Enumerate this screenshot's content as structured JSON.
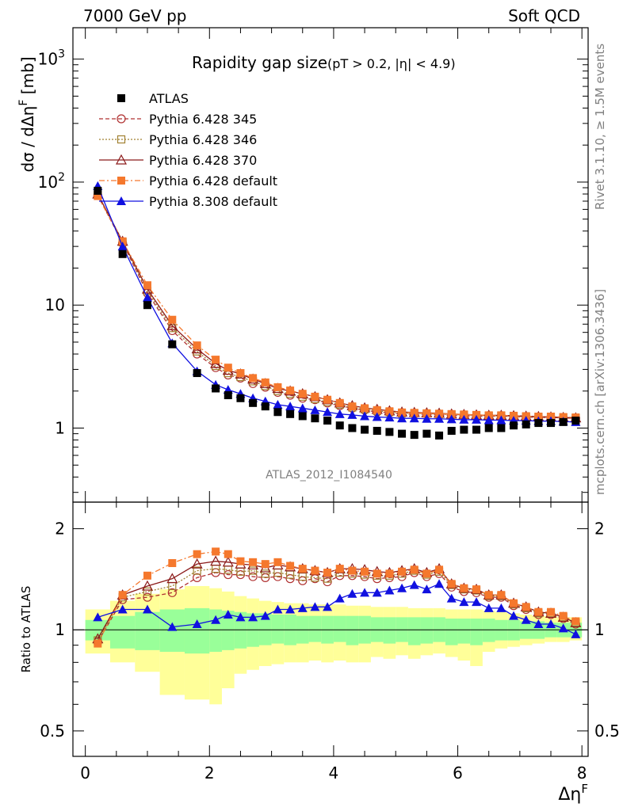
{
  "header": {
    "left": "7000 GeV pp",
    "right": "Soft QCD"
  },
  "side": {
    "rivet": "Rivet 3.1.10, ≥ 1.5M events",
    "mcplots": "mcplots.cern.ch [arXiv:1306.3436]"
  },
  "chart_data": {
    "type": "scatter",
    "title": "Rapidity gap size",
    "title_sub": "(pT > 0.2, |η| < 4.9)",
    "analysis_label": "ATLAS_2012_I1084540",
    "xlabel": "Δη",
    "xlabel_sup": "F",
    "xlim": [
      -0.2,
      8.1
    ],
    "xticks": [
      0,
      2,
      4,
      6,
      8
    ],
    "main": {
      "ylabel": "dσ / dΔη",
      "ylabel_sup": "F",
      "ylabel_unit": "[mb]",
      "yscale": "log",
      "ylim": [
        0.25,
        1800
      ],
      "yticks": [
        {
          "v": 1,
          "label": "1"
        },
        {
          "v": 10,
          "label": "10"
        },
        {
          "v": 100,
          "label": "10",
          "sup": "2"
        },
        {
          "v": 1000,
          "label": "10",
          "sup": "3"
        }
      ],
      "x": [
        0.2,
        0.6,
        1.0,
        1.4,
        1.8,
        2.1,
        2.3,
        2.5,
        2.7,
        2.9,
        3.1,
        3.3,
        3.5,
        3.7,
        3.9,
        4.1,
        4.3,
        4.5,
        4.7,
        4.9,
        5.1,
        5.3,
        5.5,
        5.7,
        5.9,
        6.1,
        6.3,
        6.5,
        6.7,
        6.9,
        7.1,
        7.3,
        7.5,
        7.7,
        7.9
      ],
      "series": [
        {
          "name": "ATLAS",
          "marker": "square-filled",
          "color": "#000000",
          "line": "none",
          "values": [
            85,
            26,
            10,
            4.8,
            2.8,
            2.1,
            1.85,
            1.75,
            1.6,
            1.5,
            1.35,
            1.3,
            1.25,
            1.2,
            1.15,
            1.05,
            1.0,
            0.97,
            0.95,
            0.93,
            0.9,
            0.88,
            0.9,
            0.87,
            0.95,
            0.97,
            0.97,
            1.0,
            1.0,
            1.05,
            1.07,
            1.1,
            1.1,
            1.12,
            1.15
          ]
        },
        {
          "name": "Pythia 6.428 345",
          "marker": "circle-open",
          "color": "#b03030",
          "line": "dashed",
          "values": [
            78,
            32,
            12.5,
            6.2,
            4.0,
            3.1,
            2.7,
            2.55,
            2.3,
            2.15,
            1.95,
            1.85,
            1.75,
            1.7,
            1.6,
            1.52,
            1.45,
            1.4,
            1.35,
            1.33,
            1.3,
            1.3,
            1.3,
            1.28,
            1.27,
            1.26,
            1.25,
            1.25,
            1.25,
            1.24,
            1.23,
            1.22,
            1.22,
            1.21,
            1.2
          ]
        },
        {
          "name": "Pythia 6.428 346",
          "marker": "square-open",
          "color": "#a08030",
          "line": "dotted",
          "values": [
            79,
            32.5,
            13,
            6.5,
            4.2,
            3.2,
            2.8,
            2.6,
            2.4,
            2.2,
            2.0,
            1.9,
            1.8,
            1.72,
            1.63,
            1.55,
            1.47,
            1.42,
            1.38,
            1.35,
            1.32,
            1.32,
            1.31,
            1.3,
            1.29,
            1.28,
            1.27,
            1.26,
            1.26,
            1.25,
            1.24,
            1.23,
            1.23,
            1.22,
            1.21
          ]
        },
        {
          "name": "Pythia 6.428 370",
          "marker": "triangle-open",
          "color": "#8b1a1a",
          "line": "solid",
          "values": [
            80,
            33,
            13.5,
            6.8,
            4.4,
            3.35,
            2.95,
            2.75,
            2.5,
            2.3,
            2.1,
            2.0,
            1.9,
            1.8,
            1.7,
            1.6,
            1.52,
            1.46,
            1.42,
            1.38,
            1.35,
            1.34,
            1.33,
            1.32,
            1.3,
            1.29,
            1.28,
            1.27,
            1.27,
            1.26,
            1.25,
            1.24,
            1.23,
            1.22,
            1.21
          ]
        },
        {
          "name": "Pythia 6.428 default",
          "marker": "square-filled",
          "color": "#f5782d",
          "line": "dashdot",
          "values": [
            77,
            33,
            14.5,
            7.6,
            4.7,
            3.6,
            3.1,
            2.8,
            2.55,
            2.35,
            2.15,
            2.02,
            1.9,
            1.8,
            1.7,
            1.6,
            1.5,
            1.45,
            1.4,
            1.37,
            1.34,
            1.33,
            1.32,
            1.31,
            1.3,
            1.29,
            1.28,
            1.27,
            1.27,
            1.26,
            1.25,
            1.24,
            1.24,
            1.23,
            1.22
          ]
        },
        {
          "name": "Pythia 8.308 default",
          "marker": "triangle-filled",
          "color": "#1010e0",
          "line": "solid",
          "values": [
            93,
            30,
            11.5,
            4.9,
            2.9,
            2.25,
            2.05,
            1.9,
            1.75,
            1.65,
            1.55,
            1.5,
            1.45,
            1.4,
            1.35,
            1.3,
            1.28,
            1.25,
            1.23,
            1.22,
            1.2,
            1.2,
            1.19,
            1.19,
            1.18,
            1.17,
            1.17,
            1.16,
            1.16,
            1.15,
            1.15,
            1.14,
            1.14,
            1.13,
            1.12
          ]
        }
      ]
    },
    "ratio": {
      "ylabel": "Ratio to ATLAS",
      "yscale": "log",
      "ylim": [
        0.42,
        2.4
      ],
      "yticks": [
        {
          "v": 0.5,
          "label": "0.5"
        },
        {
          "v": 1,
          "label": "1"
        },
        {
          "v": 2,
          "label": "2"
        }
      ],
      "band_inner": {
        "color": "#99ff99",
        "x": [
          [
            0,
            0.4
          ],
          [
            0.4,
            0.8
          ],
          [
            0.8,
            1.2
          ],
          [
            1.2,
            1.6
          ],
          [
            1.6,
            2.0
          ],
          [
            2.0,
            2.2
          ],
          [
            2.2,
            2.4
          ],
          [
            2.4,
            2.6
          ],
          [
            2.6,
            2.8
          ],
          [
            2.8,
            3.0
          ],
          [
            3.0,
            3.2
          ],
          [
            3.2,
            3.4
          ],
          [
            3.4,
            3.6
          ],
          [
            3.6,
            3.8
          ],
          [
            3.8,
            4.0
          ],
          [
            4.0,
            4.2
          ],
          [
            4.2,
            4.4
          ],
          [
            4.4,
            4.6
          ],
          [
            4.6,
            4.8
          ],
          [
            4.8,
            5.0
          ],
          [
            5.0,
            5.2
          ],
          [
            5.2,
            5.4
          ],
          [
            5.4,
            5.6
          ],
          [
            5.6,
            5.8
          ],
          [
            5.8,
            6.0
          ],
          [
            6.0,
            6.2
          ],
          [
            6.2,
            6.4
          ],
          [
            6.4,
            6.6
          ],
          [
            6.6,
            6.8
          ],
          [
            6.8,
            7.0
          ],
          [
            7.0,
            7.2
          ],
          [
            7.2,
            7.4
          ],
          [
            7.4,
            7.6
          ],
          [
            7.6,
            7.8
          ],
          [
            7.8,
            8.0
          ]
        ],
        "low": [
          0.93,
          0.88,
          0.87,
          0.86,
          0.85,
          0.86,
          0.87,
          0.88,
          0.89,
          0.9,
          0.91,
          0.9,
          0.91,
          0.92,
          0.91,
          0.92,
          0.9,
          0.91,
          0.92,
          0.91,
          0.92,
          0.9,
          0.91,
          0.92,
          0.9,
          0.91,
          0.9,
          0.92,
          0.93,
          0.93,
          0.94,
          0.94,
          0.95,
          0.95,
          0.95
        ],
        "high": [
          1.07,
          1.1,
          1.13,
          1.15,
          1.16,
          1.15,
          1.14,
          1.13,
          1.12,
          1.12,
          1.11,
          1.11,
          1.1,
          1.1,
          1.1,
          1.1,
          1.1,
          1.1,
          1.09,
          1.09,
          1.09,
          1.09,
          1.09,
          1.09,
          1.08,
          1.08,
          1.08,
          1.08,
          1.07,
          1.07,
          1.06,
          1.06,
          1.05,
          1.05,
          1.05
        ]
      },
      "band_outer": {
        "color": "#ffff99",
        "low": [
          0.85,
          0.8,
          0.75,
          0.64,
          0.62,
          0.6,
          0.67,
          0.74,
          0.76,
          0.78,
          0.79,
          0.8,
          0.8,
          0.81,
          0.8,
          0.81,
          0.8,
          0.8,
          0.83,
          0.82,
          0.84,
          0.82,
          0.84,
          0.85,
          0.83,
          0.81,
          0.78,
          0.86,
          0.88,
          0.89,
          0.9,
          0.91,
          0.92,
          0.92,
          0.93
        ],
        "high": [
          1.15,
          1.22,
          1.28,
          1.32,
          1.35,
          1.33,
          1.3,
          1.26,
          1.24,
          1.22,
          1.21,
          1.2,
          1.2,
          1.19,
          1.19,
          1.19,
          1.18,
          1.18,
          1.17,
          1.17,
          1.17,
          1.16,
          1.16,
          1.16,
          1.15,
          1.15,
          1.15,
          1.14,
          1.13,
          1.12,
          1.11,
          1.1,
          1.1,
          1.09,
          1.09
        ]
      },
      "series": [
        {
          "name": "Pythia 6.428 345",
          "values": [
            0.92,
            1.23,
            1.25,
            1.29,
            1.43,
            1.48,
            1.46,
            1.46,
            1.44,
            1.43,
            1.44,
            1.42,
            1.4,
            1.42,
            1.39,
            1.45,
            1.45,
            1.44,
            1.42,
            1.43,
            1.44,
            1.48,
            1.44,
            1.47,
            1.34,
            1.3,
            1.29,
            1.25,
            1.25,
            1.18,
            1.15,
            1.11,
            1.11,
            1.08,
            1.04
          ]
        },
        {
          "name": "Pythia 6.428 346",
          "values": [
            0.93,
            1.25,
            1.3,
            1.35,
            1.5,
            1.52,
            1.51,
            1.49,
            1.5,
            1.47,
            1.48,
            1.46,
            1.44,
            1.43,
            1.42,
            1.48,
            1.47,
            1.46,
            1.45,
            1.45,
            1.47,
            1.5,
            1.46,
            1.49,
            1.36,
            1.32,
            1.31,
            1.26,
            1.26,
            1.19,
            1.16,
            1.12,
            1.12,
            1.09,
            1.05
          ]
        },
        {
          "name": "Pythia 6.428 370",
          "values": [
            0.94,
            1.27,
            1.35,
            1.42,
            1.57,
            1.6,
            1.59,
            1.57,
            1.56,
            1.53,
            1.56,
            1.54,
            1.52,
            1.5,
            1.48,
            1.52,
            1.52,
            1.51,
            1.49,
            1.48,
            1.5,
            1.52,
            1.48,
            1.52,
            1.37,
            1.33,
            1.32,
            1.27,
            1.27,
            1.2,
            1.17,
            1.13,
            1.12,
            1.09,
            1.05
          ]
        },
        {
          "name": "Pythia 6.428 default",
          "values": [
            0.91,
            1.27,
            1.45,
            1.58,
            1.68,
            1.71,
            1.68,
            1.6,
            1.59,
            1.57,
            1.59,
            1.55,
            1.52,
            1.5,
            1.48,
            1.52,
            1.5,
            1.49,
            1.47,
            1.47,
            1.49,
            1.51,
            1.47,
            1.51,
            1.37,
            1.33,
            1.32,
            1.27,
            1.27,
            1.2,
            1.17,
            1.13,
            1.13,
            1.1,
            1.06
          ]
        },
        {
          "name": "Pythia 8.308 default",
          "values": [
            1.09,
            1.15,
            1.15,
            1.02,
            1.04,
            1.07,
            1.11,
            1.09,
            1.09,
            1.1,
            1.15,
            1.15,
            1.16,
            1.17,
            1.17,
            1.24,
            1.28,
            1.29,
            1.29,
            1.31,
            1.33,
            1.36,
            1.32,
            1.37,
            1.24,
            1.21,
            1.21,
            1.16,
            1.16,
            1.1,
            1.07,
            1.04,
            1.04,
            1.01,
            0.97
          ]
        }
      ]
    }
  }
}
